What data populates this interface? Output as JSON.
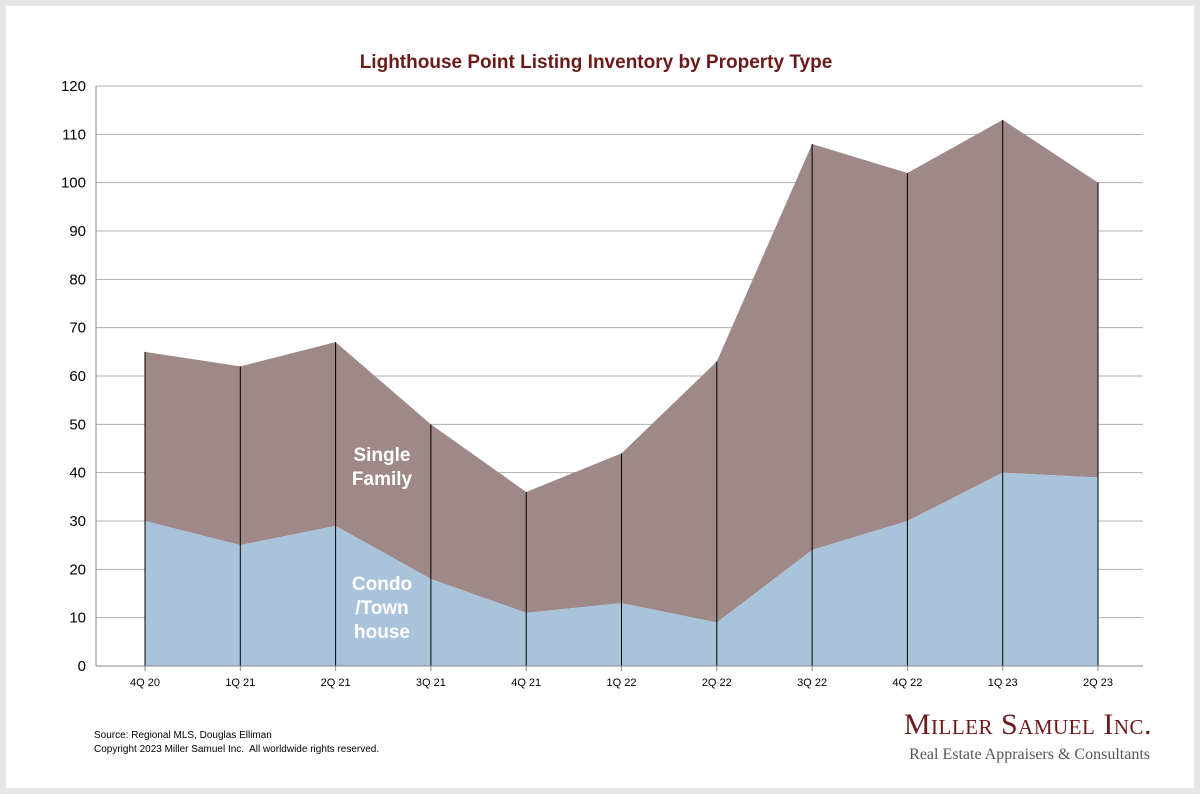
{
  "chart_data": {
    "type": "area",
    "stacked": true,
    "title": "Lighthouse Point Listing Inventory by Property Type",
    "xlabel": "",
    "ylabel": "",
    "categories": [
      "4Q 20",
      "1Q 21",
      "2Q 21",
      "3Q 21",
      "4Q 21",
      "1Q 22",
      "2Q 22",
      "3Q 22",
      "4Q 22",
      "1Q 23",
      "2Q 23"
    ],
    "series": [
      {
        "name": "Condo /Town house",
        "values": [
          30,
          25,
          29,
          18,
          11,
          13,
          9,
          24,
          30,
          40,
          39
        ]
      },
      {
        "name": "Single Family",
        "values": [
          35,
          37,
          38,
          32,
          25,
          31,
          54,
          84,
          72,
          73,
          61
        ]
      }
    ],
    "totals": [
      65,
      62,
      67,
      50,
      36,
      44,
      63,
      108,
      102,
      113,
      100
    ],
    "ylim": [
      0,
      120
    ],
    "yticks": [
      0,
      10,
      20,
      30,
      40,
      50,
      60,
      70,
      80,
      90,
      100,
      110,
      120
    ],
    "grid": true,
    "legend": "inline",
    "area_labels": {
      "single_family": [
        "Single",
        "Family"
      ],
      "condo": [
        "Condo",
        "/Town",
        "house"
      ]
    },
    "colors": {
      "condo": "#a9c4da",
      "single_family": "#9e8888",
      "title": "#6b1a1a",
      "grid": "#b0b0b0",
      "axis": "#888888",
      "dropline": "#000000"
    }
  },
  "footer": {
    "source": "Source: Regional MLS, Douglas Elliman",
    "copyright": "Copyright 2023 Miller Samuel Inc.  All worldwide rights reserved."
  },
  "brand": {
    "name": "Miller Samuel Inc.",
    "tagline": "Real Estate Appraisers & Consultants"
  }
}
